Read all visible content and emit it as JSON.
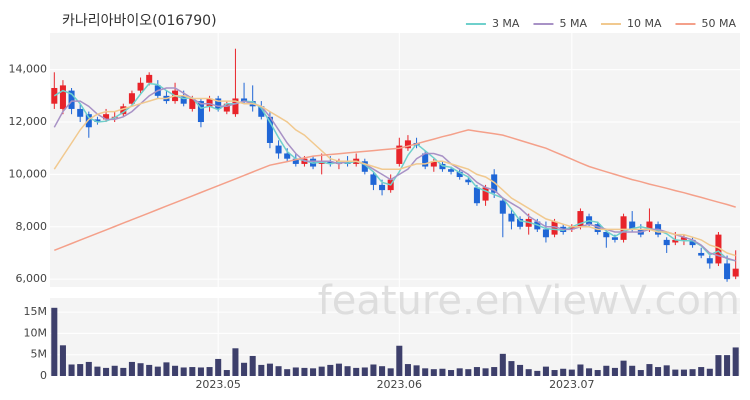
{
  "chart_data": {
    "type": "candlestick",
    "title": "카나리아바이오(016790)",
    "watermark": "feature.enViewV.com",
    "grid": true,
    "legend": "top-right",
    "up_color": "#e8242a",
    "down_color": "#1f66d6",
    "ylim": [
      5700,
      15400
    ],
    "yticks": [
      {
        "value": 6000,
        "label": "6,000"
      },
      {
        "value": 8000,
        "label": "8,000"
      },
      {
        "value": 10000,
        "label": "10,000"
      },
      {
        "value": 12000,
        "label": "12,000"
      },
      {
        "value": 14000,
        "label": "14,000"
      }
    ],
    "xlim": [
      -0.5,
      79.5
    ],
    "xticks": [
      {
        "value": 19,
        "label": "2023.05"
      },
      {
        "value": 40,
        "label": "2023.06"
      },
      {
        "value": 60,
        "label": "2023.07"
      }
    ],
    "candles": {
      "open": [
        12700,
        12500,
        13200,
        12500,
        12300,
        12100,
        12100,
        12200,
        12300,
        12700,
        13200,
        13500,
        13400,
        13000,
        12800,
        13000,
        12500,
        12800,
        12600,
        12900,
        12400,
        12300,
        12900,
        12800,
        12600,
        12200,
        11100,
        10800,
        10600,
        10400,
        10600,
        10400,
        10500,
        10400,
        10500,
        10400,
        10500,
        10000,
        9600,
        9400,
        10400,
        11000,
        11200,
        10800,
        10300,
        10400,
        10200,
        10100,
        9800,
        9500,
        9000,
        10000,
        9000,
        8500,
        8300,
        8000,
        8200,
        7900,
        7700,
        8000,
        7900,
        8000,
        8400,
        8100,
        7800,
        7600,
        7500,
        8200,
        7900,
        7900,
        8100,
        7500,
        7400,
        7500,
        7500,
        7000,
        6800,
        6600,
        6600,
        6100
      ],
      "high": [
        13900,
        13600,
        13300,
        12700,
        12400,
        12200,
        12500,
        12400,
        12700,
        13200,
        13700,
        13900,
        13600,
        13200,
        13500,
        13200,
        13000,
        12900,
        13000,
        13000,
        12800,
        14800,
        13500,
        13400,
        12800,
        12400,
        11300,
        11000,
        10800,
        10700,
        10700,
        10800,
        10700,
        10600,
        10700,
        10800,
        10600,
        10100,
        9800,
        10000,
        11400,
        11500,
        11400,
        10900,
        10600,
        10500,
        10300,
        10200,
        9900,
        9600,
        9600,
        10200,
        9100,
        8700,
        8400,
        8500,
        8300,
        8200,
        8300,
        8100,
        8100,
        8700,
        8500,
        8200,
        7900,
        7700,
        8500,
        8600,
        8100,
        8700,
        8200,
        7600,
        7800,
        7700,
        7600,
        7200,
        6900,
        7800,
        6900,
        7100
      ],
      "low": [
        12500,
        12300,
        12300,
        12000,
        11400,
        11900,
        12000,
        12000,
        12200,
        12600,
        13100,
        13400,
        12900,
        12700,
        12700,
        12600,
        12400,
        11800,
        12400,
        12400,
        12300,
        12200,
        12700,
        12400,
        12100,
        11000,
        10600,
        10500,
        10300,
        10300,
        10200,
        10000,
        10300,
        10200,
        10300,
        10300,
        10000,
        9400,
        9200,
        9300,
        10300,
        10900,
        11000,
        10200,
        10100,
        10100,
        10000,
        9800,
        9600,
        8800,
        8800,
        9100,
        7600,
        7900,
        7900,
        7700,
        7800,
        7400,
        7600,
        7700,
        7800,
        7900,
        8000,
        7700,
        7200,
        7400,
        7400,
        7800,
        7600,
        7800,
        7600,
        7000,
        7300,
        7300,
        7200,
        6800,
        6400,
        6500,
        5900,
        6000
      ],
      "close": [
        13300,
        13400,
        12500,
        12200,
        11800,
        12000,
        12300,
        12200,
        12600,
        13100,
        13500,
        13800,
        13000,
        12800,
        13200,
        12700,
        12900,
        12000,
        12900,
        12500,
        12700,
        12900,
        12800,
        12600,
        12200,
        11200,
        10800,
        10600,
        10400,
        10600,
        10300,
        10500,
        10400,
        10500,
        10400,
        10600,
        10100,
        9600,
        9400,
        9800,
        11100,
        11300,
        11100,
        10300,
        10500,
        10200,
        10100,
        9900,
        9700,
        8900,
        9500,
        9300,
        8500,
        8200,
        8000,
        8300,
        7900,
        7600,
        8200,
        7800,
        8000,
        8600,
        8100,
        7800,
        7600,
        7500,
        8400,
        7900,
        7700,
        8200,
        7700,
        7300,
        7500,
        7600,
        7300,
        6900,
        6600,
        7700,
        6000,
        6400
      ]
    },
    "series": [
      {
        "name": "3 MA",
        "color": "#6fd0cc",
        "values": [
          13000,
          13200,
          13070,
          12700,
          12170,
          12000,
          12030,
          12170,
          12370,
          12630,
          13070,
          13470,
          13430,
          13200,
          13000,
          12900,
          12930,
          12530,
          12600,
          12470,
          12700,
          12700,
          12800,
          12770,
          12530,
          12000,
          11400,
          10870,
          10600,
          10530,
          10430,
          10470,
          10400,
          10470,
          10430,
          10500,
          10370,
          10100,
          9700,
          9600,
          10100,
          10730,
          11170,
          10900,
          10630,
          10330,
          10270,
          10070,
          9900,
          9500,
          9370,
          9230,
          9100,
          8670,
          8230,
          8170,
          8070,
          7930,
          7900,
          7870,
          8000,
          8130,
          8230,
          8170,
          7830,
          7630,
          7830,
          7930,
          8000,
          7930,
          7870,
          7730,
          7500,
          7470,
          7470,
          7270,
          6930,
          7070,
          6770,
          6700
        ]
      },
      {
        "name": "5 MA",
        "color": "#a892c6",
        "values": [
          11800,
          12400,
          12800,
          12800,
          12600,
          12300,
          12100,
          12100,
          12200,
          12400,
          12700,
          13000,
          13200,
          13300,
          13300,
          13100,
          12900,
          12700,
          12700,
          12600,
          12600,
          12700,
          12800,
          12700,
          12600,
          12200,
          11700,
          11200,
          10800,
          10500,
          10500,
          10500,
          10500,
          10400,
          10500,
          10500,
          10400,
          10200,
          10000,
          9800,
          10000,
          10200,
          10600,
          10800,
          10800,
          10700,
          10400,
          10200,
          10000,
          9700,
          9500,
          9400,
          9100,
          8900,
          8700,
          8400,
          8200,
          8000,
          8000,
          7900,
          7900,
          8000,
          8100,
          8000,
          7900,
          7800,
          7800,
          7800,
          7800,
          7900,
          7900,
          7800,
          7700,
          7600,
          7500,
          7300,
          7000,
          6900,
          6800,
          6700
        ]
      },
      {
        "name": "10 MA",
        "color": "#f1c98f",
        "values": [
          10200,
          10700,
          11200,
          11700,
          12100,
          12300,
          12400,
          12400,
          12500,
          12600,
          12700,
          12800,
          12900,
          12900,
          13000,
          13000,
          12900,
          12900,
          12900,
          12800,
          12800,
          12800,
          12700,
          12700,
          12600,
          12400,
          12200,
          12000,
          11700,
          11500,
          11200,
          10900,
          10600,
          10500,
          10500,
          10500,
          10400,
          10300,
          10200,
          10200,
          10200,
          10300,
          10400,
          10400,
          10500,
          10500,
          10400,
          10300,
          10200,
          10000,
          9900,
          9700,
          9400,
          9100,
          8900,
          8700,
          8500,
          8300,
          8200,
          8100,
          8000,
          8000,
          8000,
          7900,
          7900,
          7900,
          7900,
          7900,
          7900,
          7900,
          7800,
          7800,
          7700,
          7700,
          7600,
          7500,
          7300,
          7200,
          7000,
          6900
        ]
      },
      {
        "name": "50 MA",
        "color": "#f4a08a",
        "values": [
          7100,
          7230,
          7360,
          7490,
          7620,
          7750,
          7880,
          8010,
          8140,
          8270,
          8400,
          8530,
          8660,
          8790,
          8920,
          9050,
          9180,
          9310,
          9440,
          9570,
          9700,
          9830,
          9960,
          10090,
          10220,
          10350,
          10420,
          10490,
          10560,
          10630,
          10700,
          10730,
          10760,
          10790,
          10820,
          10850,
          10880,
          10910,
          10940,
          10970,
          11000,
          11080,
          11170,
          11260,
          11350,
          11440,
          11520,
          11610,
          11700,
          11650,
          11600,
          11550,
          11500,
          11400,
          11300,
          11200,
          11100,
          11000,
          10860,
          10720,
          10580,
          10440,
          10300,
          10200,
          10100,
          10000,
          9900,
          9800,
          9720,
          9630,
          9550,
          9470,
          9380,
          9300,
          9210,
          9120,
          9030,
          8940,
          8850,
          8750
        ]
      }
    ],
    "volume": {
      "color": "#3d3f6b",
      "ylim": [
        0,
        18300000
      ],
      "yticks": [
        {
          "value": 0,
          "label": "0"
        },
        {
          "value": 5000000,
          "label": "5M"
        },
        {
          "value": 10000000,
          "label": "10M"
        },
        {
          "value": 15000000,
          "label": "15M"
        }
      ],
      "values": [
        16000000,
        7200000,
        2700000,
        2800000,
        3300000,
        2200000,
        1900000,
        2400000,
        1900000,
        3300000,
        3000000,
        2600000,
        2200000,
        3200000,
        2400000,
        2000000,
        2100000,
        2000000,
        2100000,
        4000000,
        1400000,
        6500000,
        3100000,
        4700000,
        2600000,
        2900000,
        2300000,
        1600000,
        2000000,
        1900000,
        1800000,
        2200000,
        2600000,
        2900000,
        2300000,
        1900000,
        2000000,
        2700000,
        2300000,
        1800000,
        7100000,
        2800000,
        2500000,
        1800000,
        1600000,
        1700000,
        1400000,
        1800000,
        1600000,
        2100000,
        1800000,
        2100000,
        5200000,
        3500000,
        2600000,
        1600000,
        1200000,
        2200000,
        1400000,
        1700000,
        1500000,
        2700000,
        1800000,
        1400000,
        2400000,
        1900000,
        3600000,
        2400000,
        1400000,
        2800000,
        2100000,
        2500000,
        1500000,
        1500000,
        1600000,
        2100000,
        1700000,
        4900000,
        4900000,
        6700000
      ]
    }
  }
}
